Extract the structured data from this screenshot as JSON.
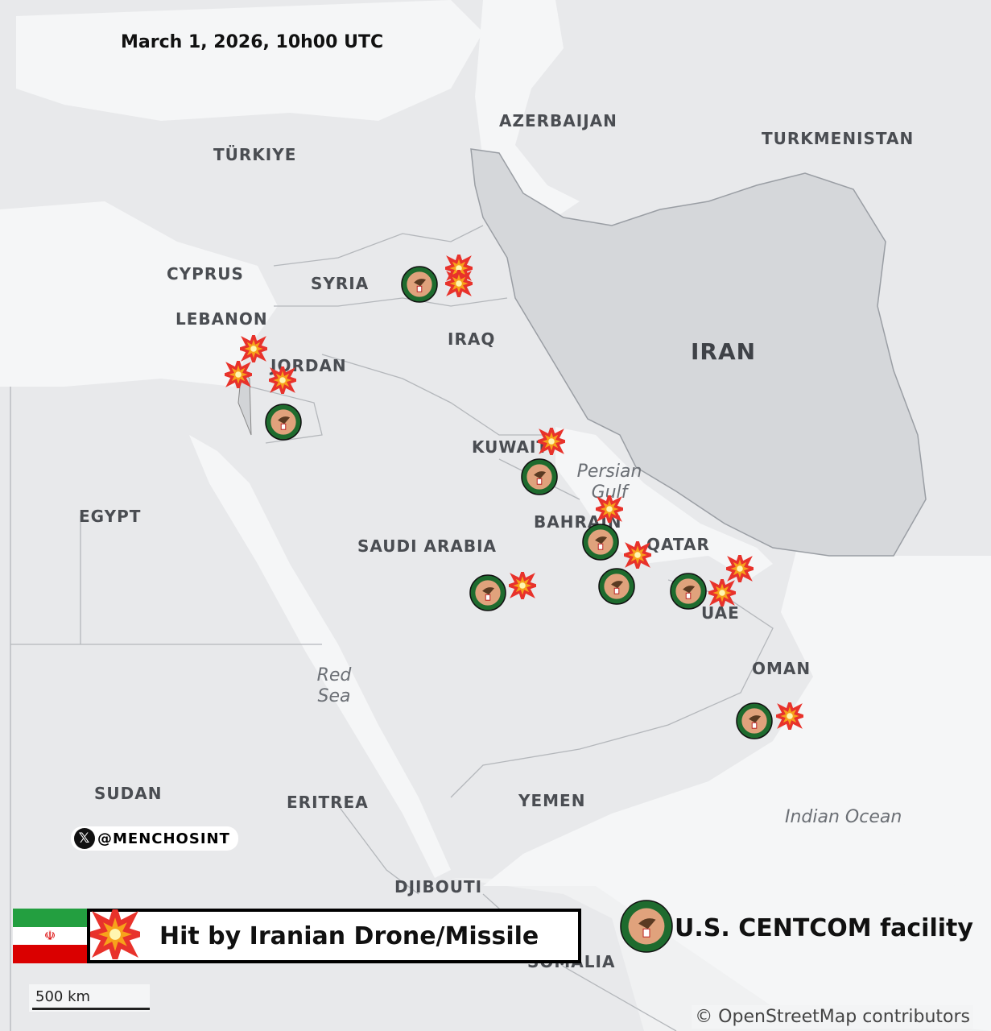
{
  "title": "March 1, 2026, 10h00 UTC",
  "countries": {
    "azerbaijan": "AZERBAIJAN",
    "turkmenistan": "TURKMENISTAN",
    "turkiye": "TÜRKIYE",
    "cyprus": "CYPRUS",
    "syria": "SYRIA",
    "lebanon": "LEBANON",
    "iraq": "IRAQ",
    "iran": "IRAN",
    "jordan": "JORDAN",
    "kuwait": "KUWAIT",
    "egypt": "EGYPT",
    "bahrain": "BAHRAIN",
    "qatar": "QATAR",
    "saudi_arabia": "SAUDI ARABIA",
    "uae": "UAE",
    "oman": "OMAN",
    "sudan": "SUDAN",
    "eritrea": "ERITREA",
    "yemen": "YEMEN",
    "djibouti": "DJIBOUTI",
    "somalia": "SOMALIA"
  },
  "seas": {
    "persian_gulf": "Persian Gulf",
    "red_sea": "Red Sea",
    "indian_ocean": "Indian Ocean"
  },
  "handle": {
    "icon": "x-logo-icon",
    "text": "@MENCHOSINT"
  },
  "legend": {
    "hit_label": "Hit by Iranian Drone/Missile",
    "centcom_label": "U.S. CENTCOM facility",
    "flag_colors": [
      "#239f40",
      "#ffffff",
      "#da0000"
    ],
    "hit_color": "#e8322b",
    "centcom_ring_color": "#1e6b2e"
  },
  "scale": "500 km",
  "attribution": "© OpenStreetMap contributors"
}
